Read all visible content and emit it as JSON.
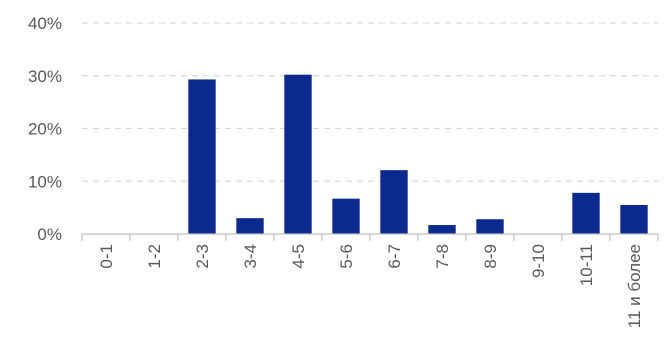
{
  "chart_data": {
    "type": "bar",
    "title": "",
    "xlabel": "",
    "ylabel": "",
    "categories": [
      "0-1",
      "1-2",
      "2-3",
      "3-4",
      "4-5",
      "5-6",
      "6-7",
      "7-8",
      "8-9",
      "9-10",
      "10-11",
      "11 и более"
    ],
    "values": [
      0,
      0,
      29.3,
      3.0,
      30.2,
      6.7,
      12.1,
      1.7,
      2.8,
      0,
      7.8,
      5.5
    ],
    "ylim": [
      0,
      40
    ],
    "yticks": [
      0,
      10,
      20,
      30,
      40
    ],
    "ytick_labels": [
      "0%",
      "10%",
      "20%",
      "30%",
      "40%"
    ],
    "grid": true,
    "legend": "none",
    "bar_color": "#0b2a8f"
  }
}
